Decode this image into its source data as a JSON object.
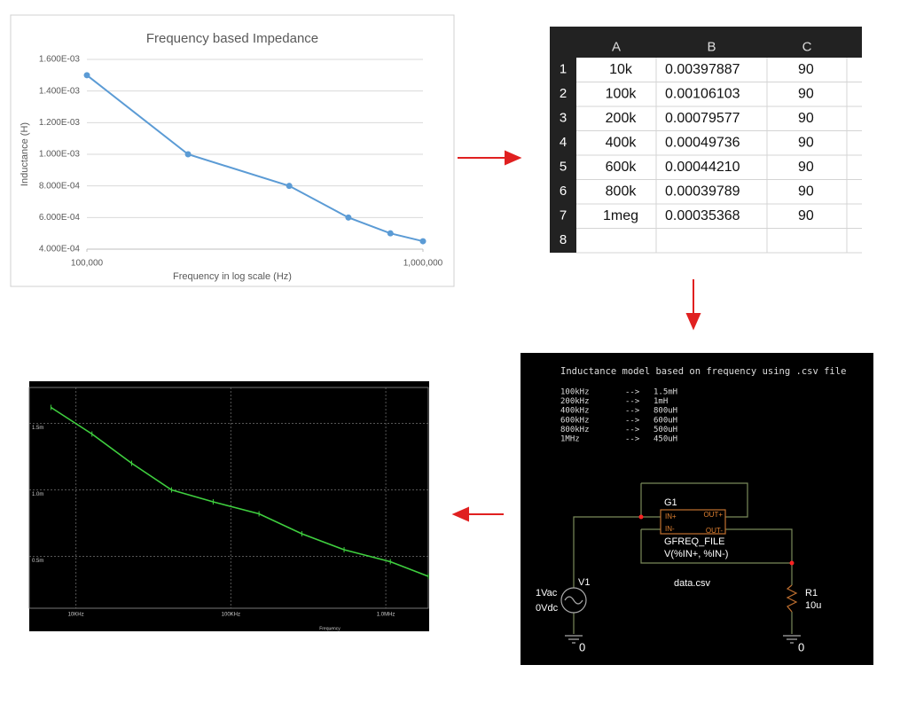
{
  "chart_data": [
    {
      "type": "line",
      "title": "Frequency based Impedance",
      "xlabel": "Frequency in log scale (Hz)",
      "ylabel": "Inductance (H)",
      "x": [
        100000,
        200000,
        400000,
        600000,
        800000,
        1000000
      ],
      "values": [
        0.0015,
        0.001,
        0.0008,
        0.0006,
        0.0005,
        0.00045
      ],
      "color": "#5b9bd5",
      "xlim": [
        100000,
        1000000
      ],
      "ylim": [
        0.0004,
        0.0016
      ],
      "log_x": true,
      "grid": true,
      "xticks": [
        {
          "value": 100000,
          "label": "100,000"
        },
        {
          "value": 1000000,
          "label": "1,000,000"
        }
      ],
      "yticks": [
        {
          "value": 0.0004,
          "label": "4.000E-04"
        },
        {
          "value": 0.0006,
          "label": "6.000E-04"
        },
        {
          "value": 0.0008,
          "label": "8.000E-04"
        },
        {
          "value": 0.001,
          "label": "1.000E-03"
        },
        {
          "value": 0.0012,
          "label": "1.200E-03"
        },
        {
          "value": 0.0014,
          "label": "1.400E-03"
        },
        {
          "value": 0.0016,
          "label": "1.600E-03"
        }
      ]
    },
    {
      "type": "line",
      "xlabel": "Frequency",
      "x": [
        6900,
        12700,
        22900,
        41400,
        76900,
        152000,
        287000,
        538000,
        1070000,
        1880000
      ],
      "values": [
        1.62,
        1.42,
        1.2,
        1.0,
        0.91,
        0.82,
        0.67,
        0.55,
        0.46,
        0.35
      ],
      "color": "#3fcf3f",
      "xlim": [
        5000,
        1880000
      ],
      "ylim": [
        0.11,
        1.77
      ],
      "log_x": true,
      "grid": true,
      "xticks": [
        {
          "value": 10000,
          "label": "10KHz"
        },
        {
          "value": 100000,
          "label": "100KHz"
        },
        {
          "value": 1000000,
          "label": "1.0MHz"
        }
      ],
      "yticks": [
        {
          "value": 0.5,
          "label": "0.5m"
        },
        {
          "value": 1.0,
          "label": "1.0m"
        },
        {
          "value": 1.5,
          "label": "1.5m"
        }
      ]
    }
  ],
  "spreadsheet": {
    "columns": [
      "A",
      "B",
      "C"
    ],
    "row_numbers": [
      1,
      2,
      3,
      4,
      5,
      6,
      7,
      8
    ],
    "rows": [
      [
        "10k",
        "0.00397887",
        "90"
      ],
      [
        "100k",
        "0.00106103",
        "90"
      ],
      [
        "200k",
        "0.00079577",
        "90"
      ],
      [
        "400k",
        "0.00049736",
        "90"
      ],
      [
        "600k",
        "0.00044210",
        "90"
      ],
      [
        "800k",
        "0.00039789",
        "90"
      ],
      [
        "1meg",
        "0.00035368",
        "90"
      ]
    ]
  },
  "schematic": {
    "title": "Inductance model based on frequency using .csv file",
    "arrow": "-->",
    "mapping": [
      [
        "100kHz",
        "1.5mH"
      ],
      [
        "200kHz",
        "1mH"
      ],
      [
        "400kHz",
        "800uH"
      ],
      [
        "600kHz",
        "600uH"
      ],
      [
        "800kHz",
        "500uH"
      ],
      [
        "1MHz",
        "450uH"
      ]
    ],
    "source": {
      "name": "G1",
      "in_plus": "IN+",
      "in_minus": "IN-",
      "out_plus": "OUT+",
      "out_minus": "OUT-",
      "model": "GFREQ_FILE",
      "expr": "V(%IN+, %IN-)",
      "file": "data.csv"
    },
    "v1": {
      "name": "V1",
      "ac": "1Vac",
      "dc": "0Vdc"
    },
    "r1": {
      "name": "R1",
      "value": "10u"
    },
    "grounds": [
      "0",
      "0"
    ]
  }
}
